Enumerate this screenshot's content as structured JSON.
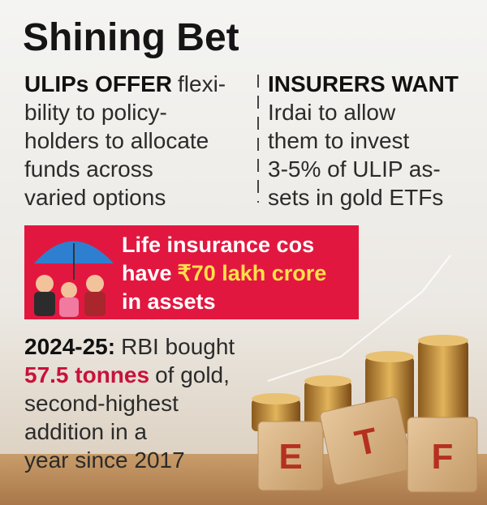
{
  "title": "Shining Bet",
  "left": {
    "lead": "ULIPs OFFER",
    "lines": [
      "flexi-",
      "bility to policy-",
      "holders to allocate",
      "funds across",
      "varied options"
    ]
  },
  "right": {
    "lead": "INSURERS WANT",
    "lines": [
      "Irdai to allow",
      "them to invest",
      "3-5% of ULIP as-",
      "sets in gold ETFs"
    ]
  },
  "banner": {
    "line1": "Life insurance cos",
    "line2": "have",
    "highlight": "₹70 lakh crore",
    "line3": "in assets"
  },
  "bottom": {
    "lead": "2024-25:",
    "line1": "RBI bought",
    "highlight": "57.5 tonnes",
    "line2": "of gold,",
    "lines": [
      "second-highest",
      "addition in a",
      "year since 2017"
    ]
  },
  "cubes": [
    "E",
    "T",
    "F"
  ]
}
